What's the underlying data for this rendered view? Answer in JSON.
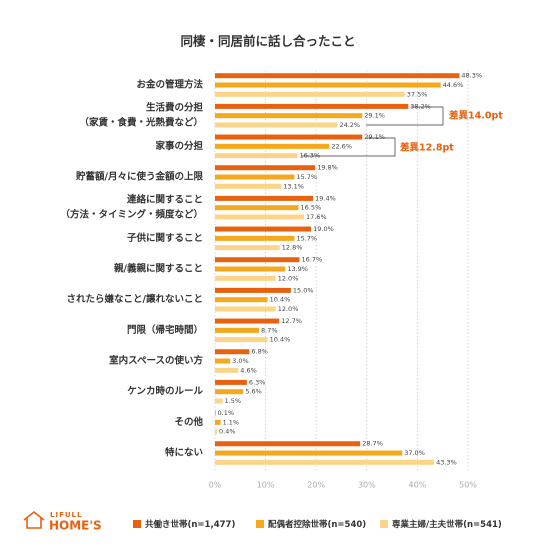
{
  "chart_data": {
    "type": "bar",
    "orientation": "horizontal",
    "title": "同棲・同居前に話し合ったこと",
    "categories": [
      [
        "お金の管理方法"
      ],
      [
        "生活費の分担",
        "（家賃・食費・光熱費など）"
      ],
      [
        "家事の分担"
      ],
      [
        "貯蓄額/月々に使う金額の上限"
      ],
      [
        "連絡に関すること",
        "（方法・タイミング・頻度など）"
      ],
      [
        "子供に関すること"
      ],
      [
        "親/義親に関すること"
      ],
      [
        "されたら嫌なこと/譲れないこと"
      ],
      [
        "門限（帰宅時間）"
      ],
      [
        "室内スペースの使い方"
      ],
      [
        "ケンカ時のルール"
      ],
      [
        "その他"
      ],
      [
        "特にない"
      ]
    ],
    "series": [
      {
        "name": "共働き世帯(n=1,477)",
        "color": "#e8610f",
        "values": [
          48.3,
          38.2,
          29.1,
          19.8,
          19.4,
          19.0,
          16.7,
          15.0,
          12.7,
          6.8,
          6.3,
          0.1,
          28.7
        ],
        "value_labels": [
          "48.3%",
          "38.2%",
          "29.1%",
          "19.8%",
          "19.4%",
          "19.0%",
          "16.7%",
          "15.0%",
          "12.7%",
          "6.8%",
          "6.3%",
          "0.1%",
          "28.7%"
        ]
      },
      {
        "name": "配偶者控除世帯(n=540)",
        "color": "#f5a81c",
        "values": [
          44.6,
          29.1,
          22.6,
          15.7,
          16.5,
          15.7,
          13.9,
          10.4,
          8.7,
          3.0,
          5.6,
          1.1,
          37.0
        ],
        "value_labels": [
          "44.6%",
          "29.1%",
          "22.6%",
          "15.7%",
          "16.5%",
          "15.7%",
          "13.9%",
          "10.4%",
          "8.7%",
          "3.0%",
          "5.6%",
          "1.1%",
          "37.0%"
        ]
      },
      {
        "name": "専業主婦/主夫世帯(n=541)",
        "color": "#fcd488",
        "values": [
          37.5,
          24.2,
          16.3,
          13.1,
          17.6,
          12.8,
          12.0,
          12.0,
          10.4,
          4.6,
          1.5,
          0.4,
          43.3
        ],
        "value_labels": [
          "37.5%",
          "24.2%",
          "16.3%",
          "13.1%",
          "17.6%",
          "12.8%",
          "12.0%",
          "12.0%",
          "10.4%",
          "4.6%",
          "1.5%",
          "0.4%",
          "43.3%"
        ]
      }
    ],
    "xlim": [
      0,
      50
    ],
    "xticks": [
      {
        "value": 0,
        "label": "0%"
      },
      {
        "value": 10,
        "label": "10%"
      },
      {
        "value": 20,
        "label": "20%"
      },
      {
        "value": 30,
        "label": "30%"
      },
      {
        "value": 40,
        "label": "40%"
      },
      {
        "value": 50,
        "label": "50%"
      }
    ],
    "grid": true,
    "annotations": [
      "差異14.0pt",
      "差異12.8pt"
    ],
    "logo": [
      "LIFULL",
      "HOME'S"
    ]
  }
}
